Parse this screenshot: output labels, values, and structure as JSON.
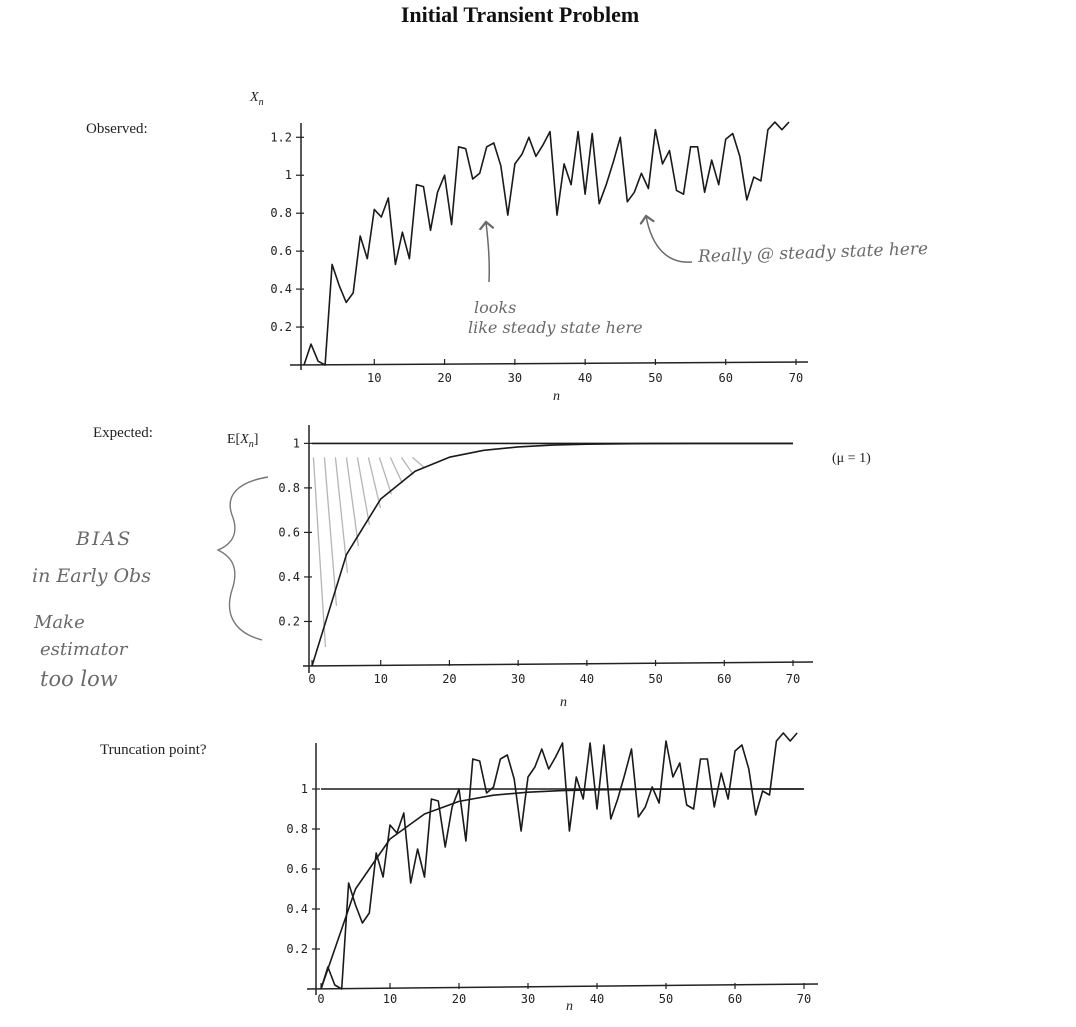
{
  "title": "Initial Transient Problem",
  "panel_labels": {
    "observed": "Observed:",
    "expected": "Expected:",
    "truncation": "Truncation point?"
  },
  "annotations": {
    "looks_line1": "looks",
    "looks_line2": "like steady state here",
    "really": "Really @ steady state here",
    "bias_line1": "BIAS",
    "bias_line2": "in Early Obs",
    "bias_line3": "Make",
    "bias_line4": "estimator",
    "bias_line5": "too low"
  },
  "chart_data": [
    {
      "type": "line",
      "title": "Observed:",
      "xlabel": "n",
      "ylabel": "X_n",
      "xlim": [
        0,
        70
      ],
      "ylim": [
        0,
        1.27
      ],
      "xticks": [
        10,
        20,
        30,
        40,
        50,
        60,
        70
      ],
      "yticks": [
        0.2,
        0.4,
        0.6,
        0.8,
        1,
        1.2
      ],
      "xtick_labels": [
        "10",
        "20",
        "30",
        "40",
        "50",
        "60",
        "70"
      ],
      "ytick_labels": [
        "0.2",
        "0.4",
        "0.6",
        "0.8",
        "1",
        "1.2"
      ],
      "series": [
        {
          "name": "",
          "color": "#1a1a1a",
          "x": [
            0,
            1,
            2,
            3,
            4,
            5,
            6,
            7,
            8,
            9,
            10,
            11,
            12,
            13,
            14,
            15,
            16,
            17,
            18,
            19,
            20,
            21,
            22,
            23,
            24,
            25,
            26,
            27,
            28,
            29,
            30,
            31,
            32,
            33,
            34,
            35,
            36,
            37,
            38,
            39,
            40,
            41,
            42,
            43,
            44,
            45,
            46,
            47,
            48,
            49,
            50,
            51,
            52,
            53,
            54,
            55,
            56,
            57,
            58,
            59,
            60,
            61,
            62,
            63,
            64,
            65,
            66,
            67,
            68,
            69
          ],
          "values": [
            0.0,
            0.11,
            0.02,
            0.0,
            0.53,
            0.42,
            0.33,
            0.38,
            0.68,
            0.56,
            0.82,
            0.78,
            0.88,
            0.53,
            0.7,
            0.56,
            0.95,
            0.94,
            0.71,
            0.91,
            1.0,
            0.74,
            1.15,
            1.14,
            0.98,
            1.01,
            1.15,
            1.17,
            1.05,
            0.79,
            1.06,
            1.11,
            1.2,
            1.1,
            1.16,
            1.23,
            0.79,
            1.06,
            0.95,
            1.23,
            0.9,
            1.22,
            0.85,
            0.95,
            1.07,
            1.2,
            0.86,
            0.91,
            1.01,
            0.93,
            1.24,
            1.06,
            1.13,
            0.92,
            0.9,
            1.15,
            1.15,
            0.91,
            1.08,
            0.95,
            1.19,
            1.22,
            1.1,
            0.87,
            0.99,
            0.97,
            1.24,
            1.28,
            1.24,
            1.28
          ]
        }
      ]
    },
    {
      "type": "line",
      "title": "Expected:",
      "xlabel": "n",
      "ylabel": "E[X_n]",
      "xlim": [
        0,
        70
      ],
      "ylim": [
        0,
        1.06
      ],
      "xticks": [
        0,
        10,
        20,
        30,
        40,
        50,
        60,
        70
      ],
      "yticks": [
        0.2,
        0.4,
        0.6,
        0.8,
        1
      ],
      "xtick_labels": [
        "0",
        "10",
        "20",
        "30",
        "40",
        "50",
        "60",
        "70"
      ],
      "ytick_labels": [
        "0.2",
        "0.4",
        "0.6",
        "0.8",
        "1"
      ],
      "annotation": "(μ = 1)",
      "series": [
        {
          "name": "",
          "color": "#1a1a1a",
          "x": [
            0,
            70
          ],
          "values": [
            1,
            1
          ]
        },
        {
          "name": "",
          "color": "#1a1a1a",
          "x": [
            0,
            5,
            10,
            15,
            20,
            25,
            30,
            35,
            40,
            45,
            50,
            55,
            60,
            65,
            70
          ],
          "values": [
            0.0,
            0.5,
            0.75,
            0.875,
            0.938,
            0.969,
            0.984,
            0.992,
            0.996,
            0.998,
            0.999,
            1.0,
            1.0,
            1.0,
            1.0
          ]
        }
      ]
    },
    {
      "type": "line",
      "title": "Truncation point?",
      "xlabel": "n",
      "ylabel": "",
      "xlim": [
        0,
        70
      ],
      "ylim": [
        0,
        1.22
      ],
      "xticks": [
        0,
        10,
        20,
        30,
        40,
        50,
        60,
        70
      ],
      "yticks": [
        0.2,
        0.4,
        0.6,
        0.8,
        1
      ],
      "xtick_labels": [
        "0",
        "10",
        "20",
        "30",
        "40",
        "50",
        "60",
        "70"
      ],
      "ytick_labels": [
        "0.2",
        "0.4",
        "0.6",
        "0.8",
        "1"
      ],
      "series": [
        {
          "name": "",
          "color": "#1a1a1a",
          "x": [
            0,
            70
          ],
          "values": [
            1,
            1
          ]
        },
        {
          "name": "",
          "color": "#1a1a1a",
          "x": [
            0,
            5,
            10,
            15,
            20,
            25,
            30,
            35,
            40,
            45,
            50,
            55,
            60,
            65,
            70
          ],
          "values": [
            0.0,
            0.5,
            0.75,
            0.875,
            0.938,
            0.969,
            0.984,
            0.992,
            0.996,
            0.998,
            0.999,
            1.0,
            1.0,
            1.0,
            1.0
          ]
        },
        {
          "name": "",
          "color": "#1a1a1a",
          "x": [
            0,
            1,
            2,
            3,
            4,
            5,
            6,
            7,
            8,
            9,
            10,
            11,
            12,
            13,
            14,
            15,
            16,
            17,
            18,
            19,
            20,
            21,
            22,
            23,
            24,
            25,
            26,
            27,
            28,
            29,
            30,
            31,
            32,
            33,
            34,
            35,
            36,
            37,
            38,
            39,
            40,
            41,
            42,
            43,
            44,
            45,
            46,
            47,
            48,
            49,
            50,
            51,
            52,
            53,
            54,
            55,
            56,
            57,
            58,
            59,
            60,
            61,
            62,
            63,
            64,
            65,
            66,
            67,
            68,
            69
          ],
          "values": [
            0.0,
            0.11,
            0.02,
            0.0,
            0.53,
            0.42,
            0.33,
            0.38,
            0.68,
            0.56,
            0.82,
            0.78,
            0.88,
            0.53,
            0.7,
            0.56,
            0.95,
            0.94,
            0.71,
            0.91,
            1.0,
            0.74,
            1.15,
            1.14,
            0.98,
            1.01,
            1.15,
            1.17,
            1.05,
            0.79,
            1.06,
            1.11,
            1.2,
            1.1,
            1.16,
            1.23,
            0.79,
            1.06,
            0.95,
            1.23,
            0.9,
            1.22,
            0.85,
            0.95,
            1.07,
            1.2,
            0.86,
            0.91,
            1.01,
            0.93,
            1.24,
            1.06,
            1.13,
            0.92,
            0.9,
            1.15,
            1.15,
            0.91,
            1.08,
            0.95,
            1.19,
            1.22,
            1.1,
            0.87,
            0.99,
            0.97,
            1.24,
            1.28,
            1.24,
            1.28
          ]
        }
      ]
    }
  ]
}
